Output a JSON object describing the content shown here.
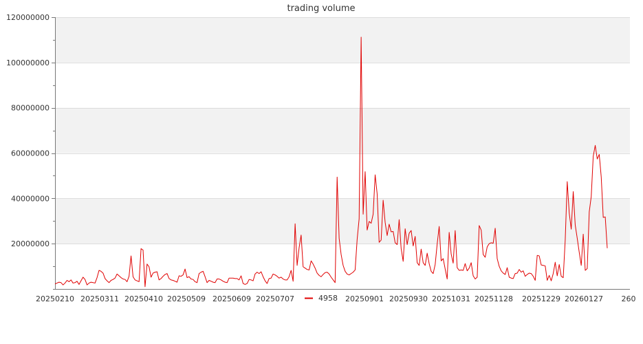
{
  "chart_data": {
    "type": "line",
    "title": "trading volume",
    "xlabel": "",
    "ylabel": "",
    "ylim": [
      0,
      120000000
    ],
    "yticks": [
      20000000,
      40000000,
      60000000,
      80000000,
      100000000,
      120000000
    ],
    "xtick_labels": [
      "20250210",
      "20250311",
      "20250410",
      "20250509",
      "20250609",
      "20250707",
      "20250901",
      "20250930",
      "20251031",
      "20251128",
      "20251229",
      "20260127",
      "260"
    ],
    "grid": "horizontal bands",
    "legend_position": "bottom-center",
    "colors": {
      "series": "#e00000",
      "band": "#f2f2f2",
      "grid": "#dddddd",
      "axis": "#777777"
    },
    "series": [
      {
        "name": "4958",
        "values": [
          2200000,
          2600000,
          3000000,
          2800000,
          1800000,
          2600000,
          3800000,
          3200000,
          4000000,
          2600000,
          2800000,
          3400000,
          2000000,
          3600000,
          5200000,
          4200000,
          1800000,
          2600000,
          3000000,
          2800000,
          2600000,
          5000000,
          8200000,
          7800000,
          7000000,
          4600000,
          3600000,
          2800000,
          3800000,
          4200000,
          4800000,
          6600000,
          5800000,
          5000000,
          4400000,
          4200000,
          3200000,
          5600000,
          14600000,
          5400000,
          4000000,
          3600000,
          3200000,
          17800000,
          17200000,
          1000000,
          11000000,
          9800000,
          5200000,
          7000000,
          7400000,
          7600000,
          4000000,
          4600000,
          5600000,
          6400000,
          6800000,
          4600000,
          4000000,
          3800000,
          3400000,
          3000000,
          5800000,
          5600000,
          6200000,
          8800000,
          5000000,
          5400000,
          4400000,
          4200000,
          3200000,
          2800000,
          6800000,
          7400000,
          7800000,
          5400000,
          2800000,
          3800000,
          3400000,
          3000000,
          2800000,
          4400000,
          4400000,
          4000000,
          3400000,
          3000000,
          2800000,
          4800000,
          4800000,
          4800000,
          4600000,
          4600000,
          4000000,
          5800000,
          2400000,
          2000000,
          2400000,
          4200000,
          4000000,
          3600000,
          6600000,
          7400000,
          6800000,
          7600000,
          5400000,
          3600000,
          2400000,
          4600000,
          4800000,
          6600000,
          6200000,
          5600000,
          4800000,
          5200000,
          4400000,
          4000000,
          4000000,
          5400000,
          8200000,
          3400000,
          28800000,
          10400000,
          18200000,
          23800000,
          9800000,
          9200000,
          8600000,
          8400000,
          12400000,
          11000000,
          9200000,
          7000000,
          6000000,
          5400000,
          6400000,
          7200000,
          7400000,
          6600000,
          5200000,
          4000000,
          2800000,
          49400000,
          22400000,
          15200000,
          10400000,
          7800000,
          6600000,
          6200000,
          6800000,
          7400000,
          8400000,
          21800000,
          31000000,
          111200000,
          33000000,
          51800000,
          26000000,
          29800000,
          29000000,
          33000000,
          50400000,
          42000000,
          20600000,
          21600000,
          39200000,
          29400000,
          23600000,
          28600000,
          25200000,
          25400000,
          20400000,
          19600000,
          30600000,
          17800000,
          12200000,
          26600000,
          19600000,
          24600000,
          25800000,
          19000000,
          23200000,
          11600000,
          10400000,
          17600000,
          11600000,
          10400000,
          15800000,
          11200000,
          7800000,
          6800000,
          10800000,
          19800000,
          27600000,
          12400000,
          13400000,
          8800000,
          4400000,
          25000000,
          15400000,
          11400000,
          25800000,
          9400000,
          8200000,
          8400000,
          8200000,
          11200000,
          8000000,
          9200000,
          11600000,
          5800000,
          4400000,
          5200000,
          28000000,
          26000000,
          15200000,
          14000000,
          18600000,
          20000000,
          20400000,
          20200000,
          26800000,
          13400000,
          10000000,
          8000000,
          7000000,
          6400000,
          9400000,
          5200000,
          4800000,
          4600000,
          6800000,
          7000000,
          8600000,
          7400000,
          8000000,
          5600000,
          6400000,
          7000000,
          6800000,
          5600000,
          3800000,
          14800000,
          14600000,
          10600000,
          10400000,
          10200000,
          3800000,
          6000000,
          3600000,
          6800000,
          11800000,
          5800000,
          10800000,
          5600000,
          5000000,
          21600000,
          47400000,
          33600000,
          26400000,
          43000000,
          28200000,
          22400000,
          16200000,
          10400000,
          24200000,
          8200000,
          9000000,
          34000000,
          40800000,
          58600000,
          63400000,
          57400000,
          59400000,
          49400000,
          31600000,
          31800000,
          18000000
        ]
      }
    ]
  }
}
